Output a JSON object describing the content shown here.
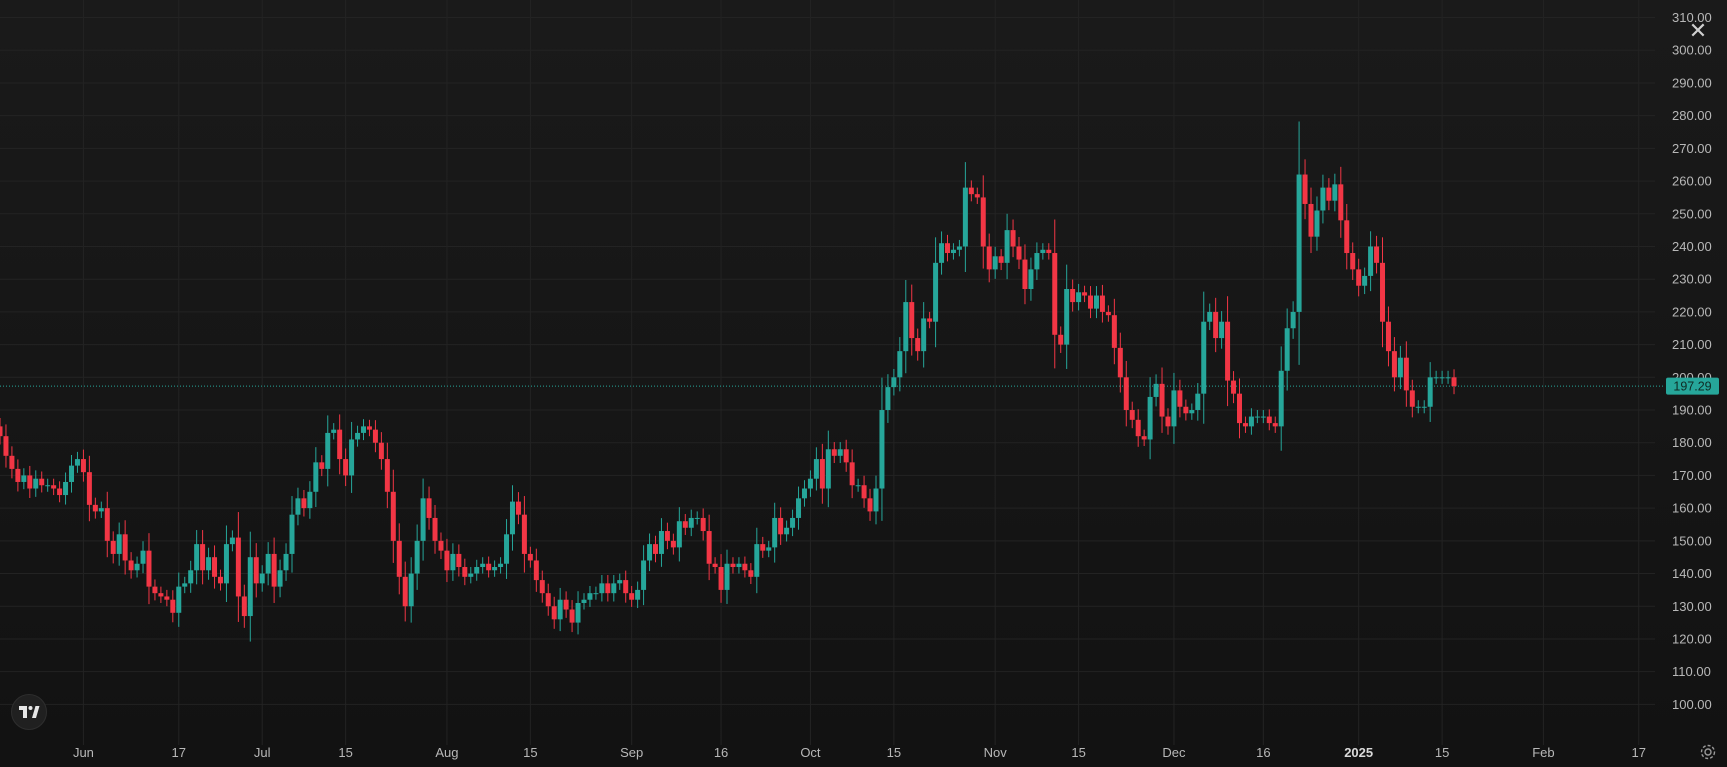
{
  "close_icon": "close-icon",
  "settings_icon": "gear-icon",
  "logo_icon": "tradingview-logo",
  "colors": {
    "up": "#26a69a",
    "down": "#f23645",
    "background": "#141414",
    "grid": "#232323",
    "last_price_line": "#26a69a"
  },
  "chart_data": {
    "type": "candlestick",
    "title": "",
    "xlabel": "",
    "ylabel": "",
    "ylim": [
      94,
      312
    ],
    "grid": true,
    "y_ticks": [
      "100.00",
      "110.00",
      "120.00",
      "130.00",
      "140.00",
      "150.00",
      "160.00",
      "170.00",
      "180.00",
      "190.00",
      "200.00",
      "210.00",
      "220.00",
      "230.00",
      "240.00",
      "250.00",
      "260.00",
      "270.00",
      "280.00",
      "290.00",
      "300.00",
      "310.00"
    ],
    "x_ticks": [
      {
        "label": "Jun",
        "date": "2024-06-01"
      },
      {
        "label": "17",
        "date": "2024-06-17"
      },
      {
        "label": "Jul",
        "date": "2024-07-01"
      },
      {
        "label": "15",
        "date": "2024-07-15"
      },
      {
        "label": "Aug",
        "date": "2024-08-01"
      },
      {
        "label": "15",
        "date": "2024-08-15"
      },
      {
        "label": "Sep",
        "date": "2024-09-01"
      },
      {
        "label": "16",
        "date": "2024-09-16"
      },
      {
        "label": "Oct",
        "date": "2024-10-01"
      },
      {
        "label": "15",
        "date": "2024-10-15"
      },
      {
        "label": "Nov",
        "date": "2024-11-01"
      },
      {
        "label": "15",
        "date": "2024-11-15"
      },
      {
        "label": "Dec",
        "date": "2024-12-01"
      },
      {
        "label": "16",
        "date": "2024-12-16"
      },
      {
        "label": "2025",
        "date": "2025-01-01",
        "bold": true
      },
      {
        "label": "15",
        "date": "2025-01-15"
      },
      {
        "label": "Feb",
        "date": "2025-02-01"
      },
      {
        "label": "17",
        "date": "2025-02-17"
      }
    ],
    "last_price": 197.29,
    "last_price_label": "197.29",
    "close_series": {
      "start_date": "2024-05-18",
      "end_date": "2025-02-11",
      "interval": "1 day",
      "closes": [
        182,
        176,
        172,
        168,
        170,
        166,
        169,
        167,
        167,
        166,
        164,
        168,
        173,
        175,
        171,
        161,
        159,
        160,
        150,
        146,
        152,
        144,
        141,
        143,
        147,
        136,
        134,
        133,
        132,
        128,
        136,
        137,
        141,
        149,
        141,
        145,
        139,
        137,
        149,
        151,
        133,
        127,
        145,
        137,
        140,
        146,
        136,
        141,
        146,
        158,
        163,
        160,
        165,
        174,
        172,
        183,
        184,
        175,
        170,
        181,
        183,
        185,
        184,
        180,
        175,
        165,
        150,
        139,
        130,
        140,
        150,
        163,
        157,
        150,
        147,
        141,
        146,
        142,
        139,
        140,
        142,
        143,
        141,
        142,
        143,
        152,
        162,
        158,
        146,
        144,
        138,
        134,
        130,
        126,
        132,
        129,
        125,
        131,
        132,
        134,
        134,
        137,
        134,
        137,
        138,
        134,
        132,
        135,
        144,
        149,
        146,
        153,
        150,
        148,
        156,
        154,
        157,
        157,
        153,
        143,
        142,
        135,
        143,
        142,
        143,
        141,
        139,
        149,
        147,
        148,
        157,
        152,
        154,
        157,
        163,
        166,
        169,
        175,
        166,
        178,
        176,
        178,
        174,
        167,
        167,
        163,
        159,
        166,
        190,
        197,
        200,
        208,
        223,
        212,
        208,
        218,
        217,
        235,
        241,
        238,
        239,
        240,
        258,
        256,
        255,
        240,
        233,
        237,
        235,
        245,
        240,
        236,
        227,
        233,
        238,
        239,
        238,
        213,
        210,
        227,
        223,
        226,
        225,
        221,
        225,
        220,
        219,
        209,
        200,
        190,
        187,
        182,
        181,
        194,
        198,
        188,
        185,
        196,
        191,
        189,
        190,
        195,
        217,
        220,
        212,
        217,
        199,
        195,
        186,
        185,
        188,
        188,
        188,
        186,
        185,
        202,
        215,
        220,
        262,
        253,
        243,
        251,
        258,
        254,
        259,
        248,
        238,
        233,
        228,
        231,
        240,
        235,
        217,
        208,
        200,
        206,
        196,
        191,
        191,
        191,
        200,
        200,
        200,
        200,
        197.29
      ]
    }
  }
}
